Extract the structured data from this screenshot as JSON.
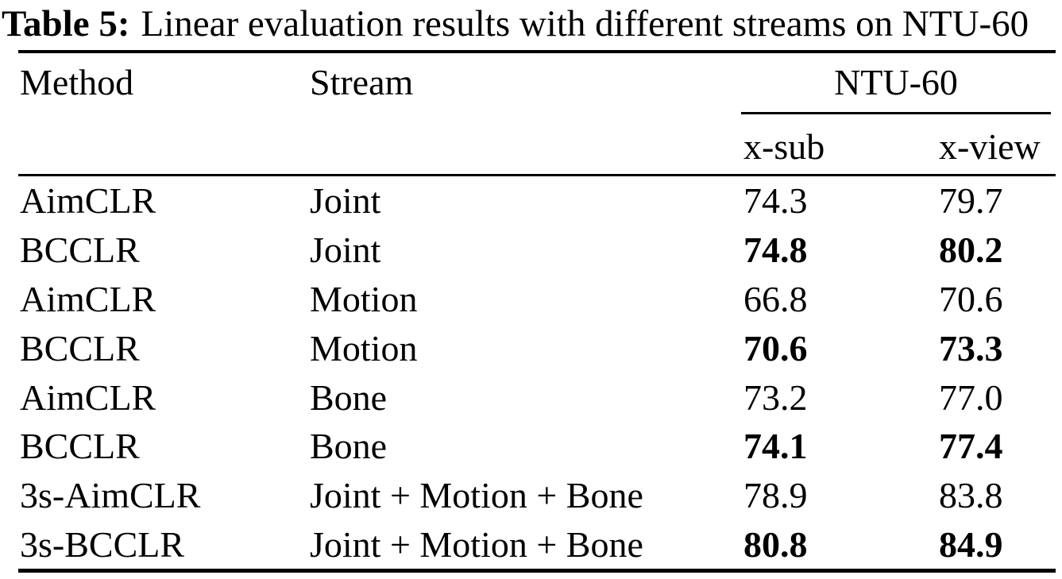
{
  "caption": {
    "label": "Table 5:",
    "text": "Linear evaluation results with different streams on NTU-60"
  },
  "table": {
    "col_method": "Method",
    "col_stream": "Stream",
    "group_header": "NTU-60",
    "sub_cols": [
      "x-sub",
      "x-view"
    ],
    "rows": [
      {
        "method": "AimCLR",
        "stream": "Joint",
        "x_sub": "74.3",
        "x_view": "79.7",
        "bold": false
      },
      {
        "method": "BCCLR",
        "stream": "Joint",
        "x_sub": "74.8",
        "x_view": "80.2",
        "bold": true
      },
      {
        "method": "AimCLR",
        "stream": "Motion",
        "x_sub": "66.8",
        "x_view": "70.6",
        "bold": false
      },
      {
        "method": "BCCLR",
        "stream": "Motion",
        "x_sub": "70.6",
        "x_view": "73.3",
        "bold": true
      },
      {
        "method": "AimCLR",
        "stream": "Bone",
        "x_sub": "73.2",
        "x_view": "77.0",
        "bold": false
      },
      {
        "method": "BCCLR",
        "stream": "Bone",
        "x_sub": "74.1",
        "x_view": "77.4",
        "bold": true
      },
      {
        "method": "3s-AimCLR",
        "stream": "Joint + Motion + Bone",
        "x_sub": "78.9",
        "x_view": "83.8",
        "bold": false
      },
      {
        "method": "3s-BCCLR",
        "stream": "Joint + Motion + Bone",
        "x_sub": "80.8",
        "x_view": "84.9",
        "bold": true
      }
    ]
  },
  "colors": {
    "text": "#000000",
    "background": "#ffffff",
    "rule": "#000000"
  }
}
